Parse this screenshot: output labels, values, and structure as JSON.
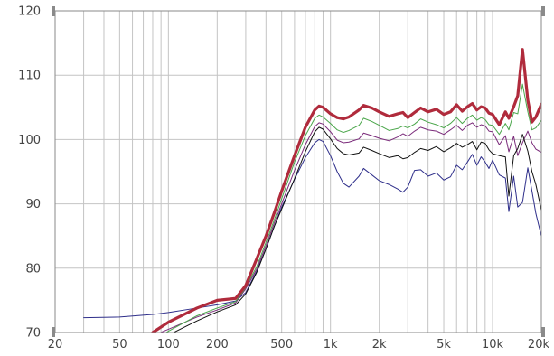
{
  "chart_data": {
    "type": "line",
    "title": "",
    "xlabel": "",
    "ylabel": "",
    "x_scale": "log",
    "xlim": [
      20,
      20000
    ],
    "ylim": [
      70,
      120
    ],
    "grid": true,
    "x_ticks": [
      {
        "value": 20,
        "label": "20"
      },
      {
        "value": 50,
        "label": "50"
      },
      {
        "value": 100,
        "label": "100"
      },
      {
        "value": 200,
        "label": "200"
      },
      {
        "value": 500,
        "label": "500"
      },
      {
        "value": 1000,
        "label": "1k"
      },
      {
        "value": 2000,
        "label": "2k"
      },
      {
        "value": 5000,
        "label": "5k"
      },
      {
        "value": 10000,
        "label": "10k"
      },
      {
        "value": 20000,
        "label": "20k"
      }
    ],
    "y_ticks": [
      70,
      80,
      90,
      100,
      110,
      120
    ],
    "series": [
      {
        "color": "#2e2e8a",
        "points": [
          [
            30,
            72.3
          ],
          [
            50,
            72.4
          ],
          [
            80,
            72.8
          ],
          [
            100,
            73.1
          ],
          [
            150,
            73.8
          ],
          [
            200,
            74.3
          ],
          [
            260,
            74.9
          ],
          [
            300,
            76.2
          ],
          [
            350,
            79.5
          ],
          [
            400,
            83
          ],
          [
            450,
            86.5
          ],
          [
            500,
            89.5
          ],
          [
            600,
            93.8
          ],
          [
            700,
            97.2
          ],
          [
            800,
            99.5
          ],
          [
            850,
            100
          ],
          [
            900,
            99.7
          ],
          [
            1000,
            97.5
          ],
          [
            1100,
            95
          ],
          [
            1200,
            93.2
          ],
          [
            1300,
            92.6
          ],
          [
            1500,
            94.3
          ],
          [
            1600,
            95.5
          ],
          [
            1800,
            94.5
          ],
          [
            2000,
            93.6
          ],
          [
            2300,
            93
          ],
          [
            2600,
            92.3
          ],
          [
            2800,
            91.8
          ],
          [
            3000,
            92.6
          ],
          [
            3300,
            95.2
          ],
          [
            3600,
            95.3
          ],
          [
            4000,
            94.3
          ],
          [
            4500,
            94.8
          ],
          [
            5000,
            93.7
          ],
          [
            5500,
            94.2
          ],
          [
            6000,
            96
          ],
          [
            6500,
            95.3
          ],
          [
            7000,
            96.5
          ],
          [
            7500,
            97.7
          ],
          [
            8000,
            96
          ],
          [
            8500,
            97.3
          ],
          [
            9000,
            96.5
          ],
          [
            9500,
            95.5
          ],
          [
            10000,
            96.8
          ],
          [
            11000,
            94.5
          ],
          [
            12000,
            94
          ],
          [
            12600,
            88.8
          ],
          [
            13500,
            94.3
          ],
          [
            14300,
            89.5
          ],
          [
            15300,
            90.2
          ],
          [
            16500,
            95.6
          ],
          [
            17500,
            92
          ],
          [
            18500,
            88.5
          ],
          [
            20000,
            85
          ]
        ]
      },
      {
        "color": "#7a2a7a",
        "points": [
          [
            80,
            69.5
          ],
          [
            100,
            70.5
          ],
          [
            150,
            72.4
          ],
          [
            200,
            73.5
          ],
          [
            260,
            74.6
          ],
          [
            300,
            76.8
          ],
          [
            350,
            79.8
          ],
          [
            400,
            83.5
          ],
          [
            450,
            87
          ],
          [
            500,
            90
          ],
          [
            600,
            95.2
          ],
          [
            700,
            99.2
          ],
          [
            800,
            102
          ],
          [
            850,
            102.6
          ],
          [
            900,
            102.4
          ],
          [
            1000,
            101.2
          ],
          [
            1100,
            99.9
          ],
          [
            1200,
            99.5
          ],
          [
            1300,
            99.6
          ],
          [
            1500,
            100.1
          ],
          [
            1600,
            101
          ],
          [
            1800,
            100.6
          ],
          [
            2000,
            100.2
          ],
          [
            2300,
            99.8
          ],
          [
            2600,
            100.4
          ],
          [
            2800,
            100.9
          ],
          [
            3000,
            100.5
          ],
          [
            3300,
            101.3
          ],
          [
            3600,
            101.9
          ],
          [
            4000,
            101.5
          ],
          [
            4500,
            101.3
          ],
          [
            5000,
            100.8
          ],
          [
            5500,
            101.5
          ],
          [
            6000,
            102.2
          ],
          [
            6500,
            101.4
          ],
          [
            7000,
            102.2
          ],
          [
            7500,
            102.6
          ],
          [
            8000,
            101.9
          ],
          [
            8500,
            102.3
          ],
          [
            9000,
            102.1
          ],
          [
            9500,
            101.3
          ],
          [
            10000,
            101.2
          ],
          [
            11000,
            99.2
          ],
          [
            12000,
            100.6
          ],
          [
            12600,
            98.1
          ],
          [
            13500,
            100.5
          ],
          [
            14300,
            97.5
          ],
          [
            15300,
            99.5
          ],
          [
            16500,
            101.3
          ],
          [
            17500,
            99.5
          ],
          [
            18500,
            98.5
          ],
          [
            20000,
            98
          ]
        ]
      },
      {
        "color": "#4aa64a",
        "points": [
          [
            80,
            68.8
          ],
          [
            100,
            70.2
          ],
          [
            150,
            72.6
          ],
          [
            200,
            73.8
          ],
          [
            260,
            74.8
          ],
          [
            300,
            77
          ],
          [
            350,
            80.2
          ],
          [
            400,
            84
          ],
          [
            450,
            87.5
          ],
          [
            500,
            90.8
          ],
          [
            600,
            96.5
          ],
          [
            700,
            100.6
          ],
          [
            800,
            103.3
          ],
          [
            850,
            103.8
          ],
          [
            900,
            103.5
          ],
          [
            1000,
            102.5
          ],
          [
            1100,
            101.5
          ],
          [
            1200,
            101.1
          ],
          [
            1300,
            101.4
          ],
          [
            1500,
            102.2
          ],
          [
            1600,
            103.3
          ],
          [
            1800,
            102.8
          ],
          [
            2000,
            102.2
          ],
          [
            2300,
            101.4
          ],
          [
            2600,
            101.7
          ],
          [
            2800,
            102.1
          ],
          [
            3000,
            101.8
          ],
          [
            3300,
            102.4
          ],
          [
            3600,
            103.2
          ],
          [
            4000,
            102.7
          ],
          [
            4500,
            102.3
          ],
          [
            5000,
            101.8
          ],
          [
            5500,
            102.5
          ],
          [
            6000,
            103.4
          ],
          [
            6500,
            102.5
          ],
          [
            7000,
            103.3
          ],
          [
            7500,
            103.8
          ],
          [
            8000,
            103
          ],
          [
            8500,
            103.4
          ],
          [
            9000,
            103.1
          ],
          [
            9500,
            102.3
          ],
          [
            10000,
            102.2
          ],
          [
            11000,
            100.8
          ],
          [
            12000,
            102.5
          ],
          [
            12600,
            101.5
          ],
          [
            13500,
            104.2
          ],
          [
            14300,
            104
          ],
          [
            15300,
            108.6
          ],
          [
            16500,
            104.3
          ],
          [
            17500,
            101.5
          ],
          [
            18500,
            101.8
          ],
          [
            20000,
            103
          ]
        ]
      },
      {
        "color": "#111111",
        "points": [
          [
            100,
            69.6
          ],
          [
            150,
            71.8
          ],
          [
            200,
            73.2
          ],
          [
            260,
            74.3
          ],
          [
            300,
            76
          ],
          [
            350,
            79.3
          ],
          [
            400,
            83
          ],
          [
            450,
            86.5
          ],
          [
            500,
            89.2
          ],
          [
            600,
            93.9
          ],
          [
            700,
            98.1
          ],
          [
            800,
            101.2
          ],
          [
            850,
            101.9
          ],
          [
            900,
            101.6
          ],
          [
            1000,
            100.1
          ],
          [
            1100,
            98.6
          ],
          [
            1200,
            97.8
          ],
          [
            1300,
            97.6
          ],
          [
            1500,
            97.9
          ],
          [
            1600,
            98.8
          ],
          [
            1800,
            98.3
          ],
          [
            2000,
            97.8
          ],
          [
            2300,
            97.2
          ],
          [
            2600,
            97.5
          ],
          [
            2800,
            97
          ],
          [
            3000,
            97.2
          ],
          [
            3300,
            98
          ],
          [
            3600,
            98.6
          ],
          [
            4000,
            98.3
          ],
          [
            4500,
            98.9
          ],
          [
            5000,
            98.1
          ],
          [
            5500,
            98.7
          ],
          [
            6000,
            99.4
          ],
          [
            6500,
            98.8
          ],
          [
            7000,
            99.2
          ],
          [
            7500,
            99.7
          ],
          [
            8000,
            98.4
          ],
          [
            8500,
            99.6
          ],
          [
            9000,
            99.4
          ],
          [
            9500,
            98.4
          ],
          [
            10000,
            97.8
          ],
          [
            11000,
            97.5
          ],
          [
            12000,
            97.3
          ],
          [
            12600,
            91.2
          ],
          [
            13500,
            97.5
          ],
          [
            14300,
            98.6
          ],
          [
            15300,
            100.8
          ],
          [
            16500,
            98.2
          ],
          [
            17500,
            95
          ],
          [
            18500,
            93
          ],
          [
            20000,
            89
          ]
        ]
      },
      {
        "color": "#b02b3c",
        "points": [
          [
            80,
            70
          ],
          [
            100,
            71.6
          ],
          [
            150,
            73.8
          ],
          [
            200,
            75
          ],
          [
            260,
            75.3
          ],
          [
            300,
            77.3
          ],
          [
            350,
            81.4
          ],
          [
            400,
            85
          ],
          [
            450,
            88.6
          ],
          [
            500,
            92
          ],
          [
            600,
            97.5
          ],
          [
            700,
            101.9
          ],
          [
            800,
            104.6
          ],
          [
            850,
            105.2
          ],
          [
            900,
            105
          ],
          [
            1000,
            104
          ],
          [
            1100,
            103.4
          ],
          [
            1200,
            103.2
          ],
          [
            1300,
            103.5
          ],
          [
            1500,
            104.6
          ],
          [
            1600,
            105.3
          ],
          [
            1800,
            104.9
          ],
          [
            2000,
            104.3
          ],
          [
            2300,
            103.6
          ],
          [
            2600,
            104
          ],
          [
            2800,
            104.2
          ],
          [
            3000,
            103.4
          ],
          [
            3300,
            104.2
          ],
          [
            3600,
            104.9
          ],
          [
            4000,
            104.3
          ],
          [
            4500,
            104.7
          ],
          [
            5000,
            103.9
          ],
          [
            5500,
            104.3
          ],
          [
            6000,
            105.4
          ],
          [
            6500,
            104.4
          ],
          [
            7000,
            105.1
          ],
          [
            7500,
            105.6
          ],
          [
            8000,
            104.6
          ],
          [
            8500,
            105.1
          ],
          [
            9000,
            104.9
          ],
          [
            9500,
            104.1
          ],
          [
            10000,
            103.9
          ],
          [
            11000,
            102.3
          ],
          [
            12000,
            104.3
          ],
          [
            12600,
            103.3
          ],
          [
            13500,
            105.1
          ],
          [
            14300,
            106.8
          ],
          [
            15300,
            114
          ],
          [
            16500,
            106.1
          ],
          [
            17500,
            102.7
          ],
          [
            18500,
            103.5
          ],
          [
            20000,
            105.5
          ]
        ]
      }
    ]
  }
}
